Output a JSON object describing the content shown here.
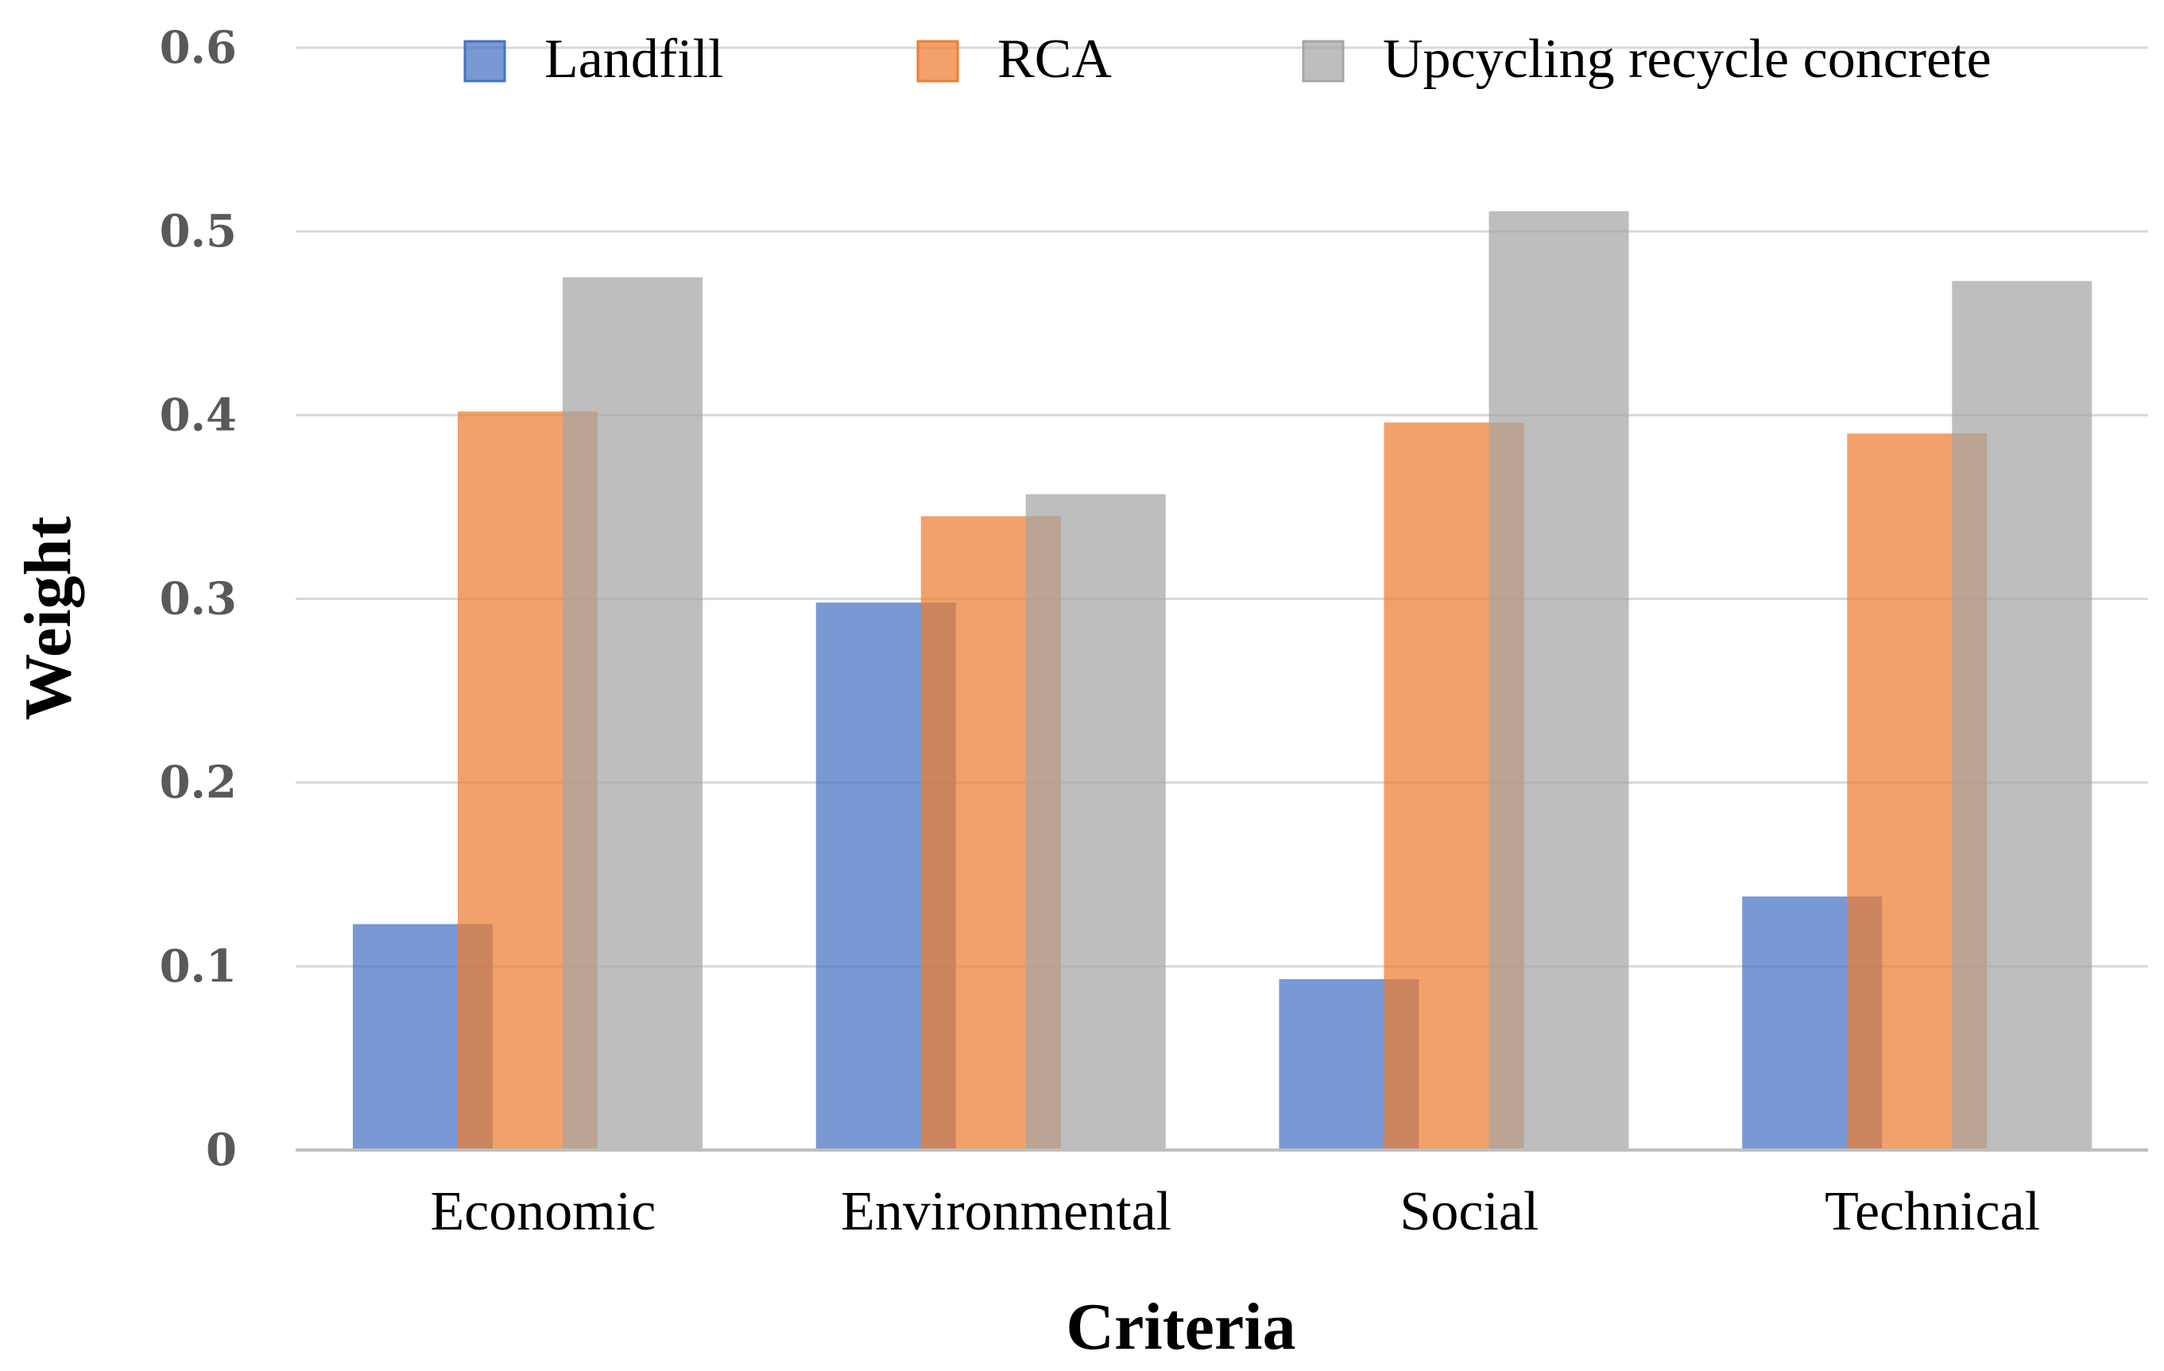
{
  "chart_data": {
    "type": "bar",
    "title": "",
    "xlabel": "Criteria",
    "ylabel": "Weight",
    "categories": [
      "Economic",
      "Environmental",
      "Social",
      "Technical"
    ],
    "series": [
      {
        "name": "Landfill",
        "values": [
          0.123,
          0.298,
          0.093,
          0.138
        ],
        "color": "#4472C4"
      },
      {
        "name": "RCA",
        "values": [
          0.402,
          0.345,
          0.396,
          0.39
        ],
        "color": "#ED7D31"
      },
      {
        "name": "Upcycling recycle concrete",
        "values": [
          0.475,
          0.357,
          0.511,
          0.473
        ],
        "color": "#A5A5A5"
      }
    ],
    "ylim": [
      0,
      0.6
    ],
    "yticks": [
      "0",
      "0.1",
      "0.2",
      "0.3",
      "0.4",
      "0.5",
      "0.6"
    ],
    "grid": true,
    "legend_position": "top"
  }
}
